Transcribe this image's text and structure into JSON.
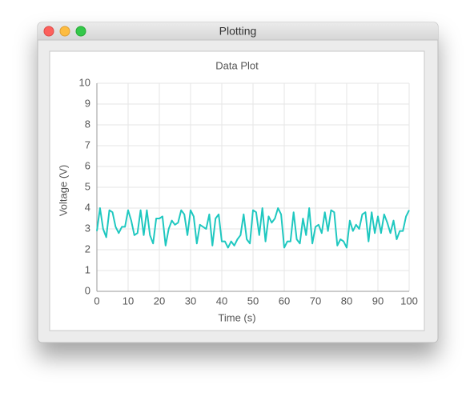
{
  "window": {
    "title": "Plotting"
  },
  "chart_data": {
    "type": "line",
    "title": "Data Plot",
    "x_label": "Time (s)",
    "y_label": "Voltage (V)",
    "x": [
      0,
      1,
      2,
      3,
      4,
      5,
      6,
      7,
      8,
      9,
      10,
      11,
      12,
      13,
      14,
      15,
      16,
      17,
      18,
      19,
      20,
      21,
      22,
      23,
      24,
      25,
      26,
      27,
      28,
      29,
      30,
      31,
      32,
      33,
      34,
      35,
      36,
      37,
      38,
      39,
      40,
      41,
      42,
      43,
      44,
      45,
      46,
      47,
      48,
      49,
      50,
      51,
      52,
      53,
      54,
      55,
      56,
      57,
      58,
      59,
      60,
      61,
      62,
      63,
      64,
      65,
      66,
      67,
      68,
      69,
      70,
      71,
      72,
      73,
      74,
      75,
      76,
      77,
      78,
      79,
      80,
      81,
      82,
      83,
      84,
      85,
      86,
      87,
      88,
      89,
      90,
      91,
      92,
      93,
      94,
      95,
      96,
      97,
      98,
      99,
      100
    ],
    "values": [
      2.9,
      4.0,
      3.0,
      2.6,
      3.9,
      3.8,
      3.1,
      2.8,
      3.1,
      3.1,
      3.9,
      3.4,
      2.7,
      2.8,
      3.9,
      2.7,
      3.9,
      2.7,
      2.3,
      3.5,
      3.5,
      3.6,
      2.2,
      3.0,
      3.4,
      3.2,
      3.3,
      3.9,
      3.7,
      2.7,
      3.9,
      3.6,
      2.3,
      3.2,
      3.1,
      3.0,
      3.7,
      2.2,
      3.5,
      3.7,
      2.4,
      2.4,
      2.1,
      2.4,
      2.2,
      2.5,
      2.7,
      3.7,
      2.5,
      2.3,
      3.9,
      3.8,
      2.7,
      4.0,
      2.4,
      3.6,
      3.3,
      3.5,
      4.0,
      3.7,
      2.1,
      2.4,
      2.4,
      3.8,
      2.5,
      2.3,
      3.5,
      2.7,
      4.0,
      2.3,
      3.1,
      3.2,
      2.8,
      3.8,
      2.9,
      3.9,
      3.8,
      2.2,
      2.5,
      2.4,
      2.1,
      3.4,
      2.9,
      3.2,
      3.0,
      3.7,
      3.8,
      2.4,
      3.8,
      2.8,
      3.6,
      2.8,
      3.7,
      3.3,
      2.8,
      3.4,
      2.5,
      2.9,
      2.9,
      3.6,
      3.9
    ],
    "color": "#1fc8c0",
    "xlim": [
      0,
      100
    ],
    "xticks": [
      0,
      10,
      20,
      30,
      40,
      50,
      60,
      70,
      80,
      90,
      100
    ],
    "ylim": [
      0,
      10
    ],
    "yticks": [
      0,
      1,
      2,
      3,
      4,
      5,
      6,
      7,
      8,
      9,
      10
    ],
    "grid": true
  }
}
